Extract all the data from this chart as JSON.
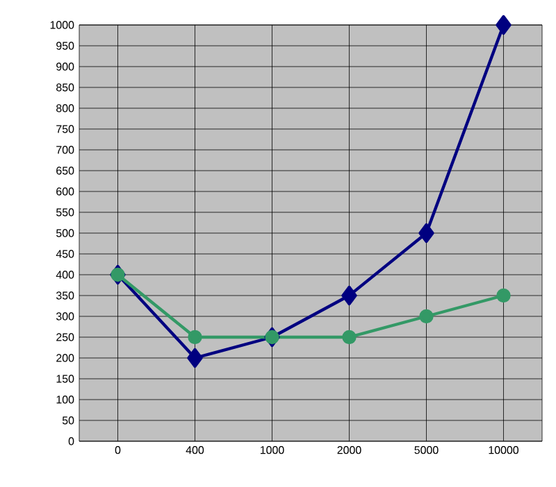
{
  "chart_data": {
    "type": "line",
    "categories": [
      "0",
      "400",
      "1000",
      "2000",
      "5000",
      "10000"
    ],
    "series": [
      {
        "color": "#000080",
        "marker": "diamond",
        "values": [
          400,
          200,
          250,
          350,
          500,
          1000
        ]
      },
      {
        "color": "#339966",
        "marker": "circle",
        "values": [
          400,
          250,
          250,
          250,
          300,
          350
        ]
      }
    ],
    "ylim": [
      0,
      1000
    ],
    "yticks": [
      0,
      50,
      100,
      150,
      200,
      250,
      300,
      350,
      400,
      450,
      500,
      550,
      600,
      650,
      700,
      750,
      800,
      850,
      900,
      950,
      1000
    ],
    "grid": true,
    "line_style": "solid"
  }
}
